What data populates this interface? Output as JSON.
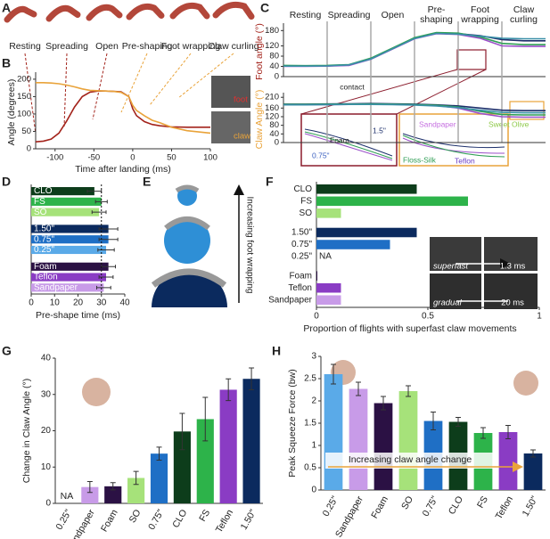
{
  "figure": {
    "panel_labels": [
      "A",
      "B",
      "C",
      "D",
      "E",
      "F",
      "G",
      "H"
    ],
    "poses": [
      "Resting",
      "Spreading",
      "Open",
      "Pre-shaping",
      "Foot wrapping",
      "Claw curling"
    ],
    "b_image_labels": [
      "foot",
      "claw"
    ],
    "c_annotations": [
      "contact",
      "1.5\"",
      "Foam",
      "0.75\"",
      "Sandpaper",
      "Sweet Olive",
      "Floss-Silk",
      "Teflon"
    ],
    "e_label": "Increasing foot wrapping",
    "f_images": [
      "superfast",
      "1.3 ms",
      "gradual",
      "20 ms"
    ]
  },
  "chart_data": [
    {
      "type": "line",
      "xlabel": "Time after landing (ms)",
      "ylabel": "Angle (degrees)",
      "x": [
        -125,
        -115,
        -105,
        -95,
        -85,
        -75,
        -65,
        -55,
        -45,
        -35,
        -25,
        -15,
        -5,
        0,
        5,
        15,
        25,
        35,
        50,
        70,
        100
      ],
      "xlim": [
        -125,
        100
      ],
      "xticks": [
        -100,
        -50,
        0,
        50,
        100
      ],
      "ylim": [
        0,
        210
      ],
      "yticks": [
        0,
        50,
        100,
        150,
        200
      ],
      "series": [
        {
          "name": "foot",
          "color": "#a3231b",
          "values": [
            20,
            22,
            28,
            45,
            80,
            120,
            150,
            163,
            166,
            166,
            165,
            164,
            150,
            115,
            95,
            78,
            70,
            66,
            63,
            62,
            62
          ]
        },
        {
          "name": "claw",
          "color": "#e9a33a",
          "values": [
            190,
            190,
            189,
            187,
            183,
            178,
            172,
            168,
            167,
            166,
            165,
            162,
            150,
            125,
            110,
            95,
            82,
            75,
            62,
            52,
            45
          ]
        }
      ]
    },
    {
      "type": "line",
      "ylabel": "Foot angle (°)",
      "ylabel_color": "#a3231b",
      "phases": [
        "Resting",
        "Spreading",
        "Open",
        "Pre-\nshaping",
        "Foot\nwrapping",
        "Claw\ncurling"
      ],
      "x": [
        0,
        1,
        2,
        3,
        4,
        5,
        6,
        7,
        8,
        9,
        10,
        11,
        12
      ],
      "xlim": [
        0,
        12
      ],
      "ylim": [
        0,
        195
      ],
      "yticks": [
        0,
        40,
        80,
        120,
        180
      ],
      "series": [
        {
          "color": "#1c2f6b",
          "values": [
            42,
            41,
            42,
            45,
            70,
            110,
            150,
            170,
            168,
            160,
            145,
            140,
            140
          ]
        },
        {
          "color": "#9b4fc9",
          "values": [
            40,
            40,
            41,
            44,
            68,
            108,
            148,
            168,
            165,
            150,
            120,
            118,
            118
          ]
        },
        {
          "color": "#2f9e55",
          "values": [
            44,
            43,
            44,
            47,
            72,
            112,
            152,
            172,
            170,
            155,
            130,
            125,
            125
          ]
        },
        {
          "color": "#3a8fa8",
          "values": [
            41,
            41,
            42,
            46,
            69,
            109,
            149,
            169,
            166,
            158,
            150,
            148,
            148
          ]
        }
      ]
    },
    {
      "type": "line",
      "ylabel": "Claw Angle (°)",
      "ylabel_color": "#e9a33a",
      "x": [
        0,
        1,
        2,
        3,
        4,
        5,
        6,
        7,
        8,
        9,
        10,
        11,
        12
      ],
      "xlim": [
        0,
        12
      ],
      "ylim": [
        0,
        215
      ],
      "yticks": [
        0,
        40,
        80,
        120,
        160,
        210
      ],
      "series": [
        {
          "color": "#1c2f6b",
          "values": [
            178,
            178,
            179,
            180,
            181,
            180,
            178,
            175,
            170,
            160,
            150,
            148,
            148
          ]
        },
        {
          "color": "#9b4fc9",
          "values": [
            176,
            176,
            176,
            177,
            178,
            177,
            175,
            172,
            160,
            135,
            120,
            118,
            118
          ]
        },
        {
          "color": "#2f9e55",
          "values": [
            177,
            177,
            178,
            178,
            179,
            178,
            176,
            173,
            165,
            145,
            130,
            128,
            128
          ]
        },
        {
          "color": "#3a8fa8",
          "values": [
            175,
            175,
            176,
            177,
            177,
            176,
            174,
            170,
            162,
            150,
            140,
            138,
            138
          ]
        }
      ]
    },
    {
      "type": "hbar",
      "xlabel": "Pre-shape time (ms)",
      "labels_inside": true,
      "categories": [
        "CLO",
        "FS",
        "SO",
        "1.50\"",
        "0.75\"",
        "0.25\"",
        "Foam",
        "Teflon",
        "Sandpaper"
      ],
      "values": [
        27,
        30,
        29,
        33,
        33,
        32,
        33,
        32,
        31
      ],
      "errors": [
        3,
        2.5,
        3,
        4,
        4,
        3.5,
        3,
        3,
        3
      ],
      "colors": [
        "#0d3d1b",
        "#2db34a",
        "#a6e27a",
        "#0b2a5e",
        "#1f6fc5",
        "#5aaae8",
        "#2b1144",
        "#8a3cc4",
        "#c89be8"
      ],
      "xlim": [
        0,
        40
      ],
      "xticks": [
        0,
        10,
        20,
        30,
        40
      ],
      "reference": 30
    },
    {
      "type": "hbar",
      "xlabel": "Proportion of flights with superfast claw movements",
      "na_label": "NA",
      "categories": [
        "CLO",
        "FS",
        "SO",
        "1.50\"",
        "0.75\"",
        "0.25\"",
        "Foam",
        "Teflon",
        "Sandpaper"
      ],
      "values": [
        0.45,
        0.68,
        0.11,
        0.45,
        0.33,
        null,
        0,
        0.11,
        0.11
      ],
      "colors": [
        "#0d3d1b",
        "#2db34a",
        "#a6e27a",
        "#0b2a5e",
        "#1f6fc5",
        "#5aaae8",
        "#2b1144",
        "#8a3cc4",
        "#c89be8"
      ],
      "xlim": [
        0,
        1
      ],
      "xticks": [
        0,
        0.5,
        1
      ]
    },
    {
      "type": "bar",
      "ylabel": "Change in Claw Angle (°)",
      "na_label": "NA",
      "categories": [
        "0.25\"",
        "Sandpaper",
        "Foam",
        "SO",
        "0.75\"",
        "CLO",
        "FS",
        "Teflon",
        "1.50\""
      ],
      "values": [
        null,
        4.5,
        4.7,
        7,
        13.7,
        19.8,
        23.2,
        31.3,
        34.3
      ],
      "errors": [
        null,
        1.5,
        1,
        1.8,
        1.8,
        5,
        6,
        3,
        3
      ],
      "colors": [
        "#5aaae8",
        "#c89be8",
        "#2b1144",
        "#a6e27a",
        "#1f6fc5",
        "#0d3d1b",
        "#2db34a",
        "#8a3cc4",
        "#0b2a5e"
      ],
      "ylim": [
        0,
        40
      ],
      "yticks": [
        0,
        10,
        20,
        30,
        40
      ]
    },
    {
      "type": "bar",
      "ylabel": "Peak Squeeze Force (bw)",
      "annotation": "Increasing claw angle change",
      "categories": [
        "0.25\"",
        "Sandpaper",
        "Foam",
        "SO",
        "0.75\"",
        "CLO",
        "FS",
        "Teflon",
        "1.50\""
      ],
      "values": [
        2.6,
        2.27,
        1.95,
        2.22,
        1.55,
        1.53,
        1.28,
        1.3,
        0.82
      ],
      "errors": [
        0.22,
        0.15,
        0.15,
        0.12,
        0.2,
        0.1,
        0.12,
        0.15,
        0.08
      ],
      "colors": [
        "#5aaae8",
        "#c89be8",
        "#2b1144",
        "#a6e27a",
        "#1f6fc5",
        "#0d3d1b",
        "#2db34a",
        "#8a3cc4",
        "#0b2a5e"
      ],
      "ylim": [
        0,
        3
      ],
      "yticks": [
        0,
        0.5,
        1,
        1.5,
        2,
        2.5,
        3
      ]
    }
  ]
}
